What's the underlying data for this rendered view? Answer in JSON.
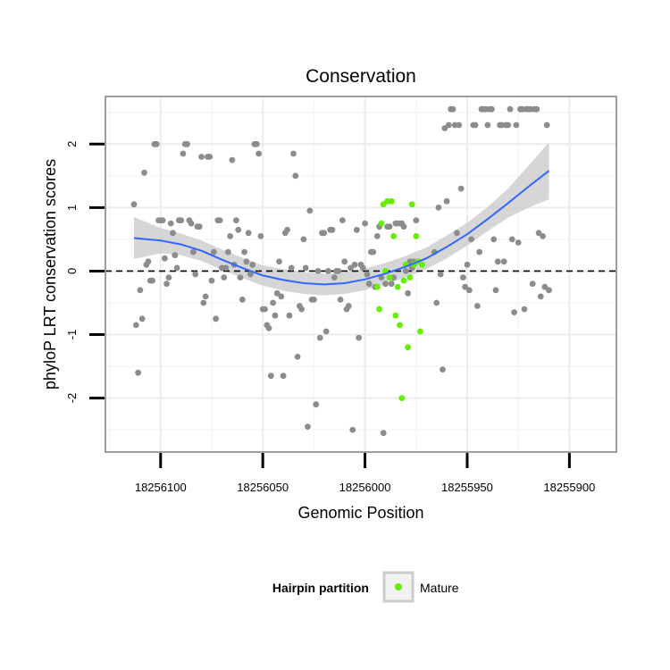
{
  "chart_data": {
    "type": "scatter",
    "title": "Conservation",
    "xlabel": "Genomic Position",
    "ylabel": "phyloP LRT conservation scores",
    "x_reversed": true,
    "xlim": [
      18256127,
      18255877
    ],
    "ylim": [
      -2.85,
      2.75
    ],
    "x_ticks": [
      18256100,
      18256050,
      18256000,
      18255950,
      18255900
    ],
    "y_ticks": [
      2,
      1,
      0,
      -1,
      -2
    ],
    "grid": true,
    "reference_line": {
      "y": 0,
      "style": "dashed",
      "color": "#000000"
    },
    "legend": {
      "title": "Hairpin partition",
      "position": "bottom",
      "entries": [
        "Mature"
      ]
    },
    "colors": {
      "other": "#8c8c8c",
      "mature": "#66ee00",
      "smooth": "#3366ff",
      "ribbon": "#cccccc"
    },
    "series": [
      {
        "name": "",
        "color": "#8c8c8c",
        "points": [
          [
            18256113,
            1.05
          ],
          [
            18256112,
            -0.85
          ],
          [
            18256111,
            -1.6
          ],
          [
            18256110,
            -0.3
          ],
          [
            18256109,
            -0.75
          ],
          [
            18256108,
            1.55
          ],
          [
            18256107,
            0.1
          ],
          [
            18256106,
            0.15
          ],
          [
            18256105,
            -0.15
          ],
          [
            18256104,
            -0.15
          ],
          [
            18256103,
            2.0
          ],
          [
            18256102,
            2.0
          ],
          [
            18256101,
            0.8
          ],
          [
            18256100,
            0.8
          ],
          [
            18256099,
            0.8
          ],
          [
            18256098,
            0.2
          ],
          [
            18256097,
            -0.2
          ],
          [
            18256096,
            -0.1
          ],
          [
            18256095,
            0.75
          ],
          [
            18256094,
            0.6
          ],
          [
            18256093,
            0.25
          ],
          [
            18256092,
            0.05
          ],
          [
            18256091,
            0.8
          ],
          [
            18256090,
            0.8
          ],
          [
            18256089,
            1.85
          ],
          [
            18256088,
            2.0
          ],
          [
            18256087,
            2.0
          ],
          [
            18256086,
            0.8
          ],
          [
            18256085,
            0.75
          ],
          [
            18256084,
            0.3
          ],
          [
            18256083,
            -0.05
          ],
          [
            18256082,
            0.7
          ],
          [
            18256081,
            0.7
          ],
          [
            18256080,
            1.8
          ],
          [
            18256079,
            -0.5
          ],
          [
            18256078,
            -0.4
          ],
          [
            18256077,
            1.8
          ],
          [
            18256076,
            1.8
          ],
          [
            18256075,
            -0.15
          ],
          [
            18256074,
            0.3
          ],
          [
            18256073,
            -0.75
          ],
          [
            18256072,
            0.8
          ],
          [
            18256071,
            0.8
          ],
          [
            18256070,
            0.05
          ],
          [
            18256069,
            -0.1
          ],
          [
            18256068,
            0.05
          ],
          [
            18256067,
            0.3
          ],
          [
            18256066,
            0.55
          ],
          [
            18256065,
            1.75
          ],
          [
            18256064,
            0.1
          ],
          [
            18256063,
            0.8
          ],
          [
            18256062,
            0.65
          ],
          [
            18256061,
            -0.1
          ],
          [
            18256060,
            -0.45
          ],
          [
            18256059,
            0.3
          ],
          [
            18256058,
            0.15
          ],
          [
            18256057,
            0.6
          ],
          [
            18256056,
            -0.05
          ],
          [
            18256055,
            0.1
          ],
          [
            18256054,
            2.0
          ],
          [
            18256053,
            2.0
          ],
          [
            18256052,
            1.85
          ],
          [
            18256051,
            0.55
          ],
          [
            18256050,
            -0.6
          ],
          [
            18256049,
            -0.6
          ],
          [
            18256048,
            -0.85
          ],
          [
            18256047,
            -0.9
          ],
          [
            18256046,
            -1.65
          ],
          [
            18256045,
            -0.5
          ],
          [
            18256044,
            -0.7
          ],
          [
            18256043,
            -0.35
          ],
          [
            18256042,
            0.15
          ],
          [
            18256041,
            -0.4
          ],
          [
            18256040,
            -1.65
          ],
          [
            18256039,
            0.6
          ],
          [
            18256038,
            0.65
          ],
          [
            18256037,
            -0.7
          ],
          [
            18256036,
            0.05
          ],
          [
            18256035,
            1.85
          ],
          [
            18256034,
            1.5
          ],
          [
            18256033,
            -1.35
          ],
          [
            18256032,
            -0.55
          ],
          [
            18256031,
            -0.6
          ],
          [
            18256030,
            0.5
          ],
          [
            18256029,
            0.05
          ],
          [
            18256028,
            -2.45
          ],
          [
            18256027,
            0.95
          ],
          [
            18256026,
            -0.45
          ],
          [
            18256025,
            -0.45
          ],
          [
            18256024,
            -2.1
          ],
          [
            18256023,
            0.0
          ],
          [
            18256022,
            -1.05
          ],
          [
            18256021,
            0.6
          ],
          [
            18256020,
            0.6
          ],
          [
            18256019,
            -0.95
          ],
          [
            18256018,
            0.0
          ],
          [
            18256017,
            0.65
          ],
          [
            18256016,
            0.65
          ],
          [
            18256015,
            -0.1
          ],
          [
            18256014,
            0.0
          ],
          [
            18256013,
            0.0
          ],
          [
            18256012,
            -0.45
          ],
          [
            18256011,
            0.8
          ],
          [
            18256010,
            0.15
          ],
          [
            18256009,
            -0.6
          ],
          [
            18256008,
            -0.55
          ],
          [
            18256007,
            0.05
          ],
          [
            18256006,
            -2.5
          ],
          [
            18256005,
            0.1
          ],
          [
            18256004,
            0.65
          ],
          [
            18256003,
            -1.05
          ],
          [
            18256002,
            0.1
          ],
          [
            18256001,
            0.05
          ],
          [
            18256000,
            0.75
          ],
          [
            18255999,
            -0.05
          ],
          [
            18255998,
            -0.2
          ],
          [
            18255997,
            0.3
          ],
          [
            18255996,
            0.3
          ],
          [
            18255995,
            -0.25
          ],
          [
            18255994,
            0.55
          ],
          [
            18255993,
            0.7
          ],
          [
            18255992,
            -0.1
          ],
          [
            18255991,
            -2.55
          ],
          [
            18255990,
            -0.2
          ],
          [
            18255989,
            0.7
          ],
          [
            18255988,
            0.7
          ],
          [
            18255987,
            -0.2
          ],
          [
            18255986,
            -0.1
          ],
          [
            18255985,
            0.75
          ],
          [
            18255984,
            0.75
          ],
          [
            18255983,
            0.75
          ],
          [
            18255982,
            0.75
          ],
          [
            18255981,
            0.7
          ],
          [
            18255980,
            0.0
          ],
          [
            18255979,
            -0.35
          ],
          [
            18255978,
            0.15
          ],
          [
            18255977,
            0.05
          ],
          [
            18255976,
            0.15
          ],
          [
            18255975,
            0.8
          ],
          [
            18255966,
            0.3
          ],
          [
            18255965,
            -0.5
          ],
          [
            18255964,
            1.0
          ],
          [
            18255963,
            -0.05
          ],
          [
            18255962,
            -1.55
          ],
          [
            18255961,
            2.25
          ],
          [
            18255960,
            1.1
          ],
          [
            18255959,
            2.3
          ],
          [
            18255958,
            2.55
          ],
          [
            18255957,
            2.55
          ],
          [
            18255956,
            2.3
          ],
          [
            18255955,
            0.6
          ],
          [
            18255954,
            2.3
          ],
          [
            18255953,
            1.3
          ],
          [
            18255952,
            -0.1
          ],
          [
            18255951,
            -0.25
          ],
          [
            18255950,
            0.1
          ],
          [
            18255949,
            -0.3
          ],
          [
            18255948,
            0.5
          ],
          [
            18255947,
            2.3
          ],
          [
            18255946,
            2.3
          ],
          [
            18255945,
            -0.55
          ],
          [
            18255944,
            0.3
          ],
          [
            18255943,
            2.55
          ],
          [
            18255942,
            2.55
          ],
          [
            18255941,
            2.55
          ],
          [
            18255940,
            2.3
          ],
          [
            18255939,
            2.55
          ],
          [
            18255938,
            2.55
          ],
          [
            18255937,
            0.5
          ],
          [
            18255936,
            -0.3
          ],
          [
            18255935,
            0.15
          ],
          [
            18255934,
            2.3
          ],
          [
            18255933,
            2.3
          ],
          [
            18255932,
            0.15
          ],
          [
            18255931,
            2.3
          ],
          [
            18255930,
            2.3
          ],
          [
            18255929,
            2.55
          ],
          [
            18255928,
            0.5
          ],
          [
            18255927,
            -0.65
          ],
          [
            18255926,
            2.3
          ],
          [
            18255925,
            0.45
          ],
          [
            18255924,
            2.55
          ],
          [
            18255923,
            2.55
          ],
          [
            18255922,
            -0.6
          ],
          [
            18255921,
            2.55
          ],
          [
            18255920,
            2.55
          ],
          [
            18255919,
            2.55
          ],
          [
            18255918,
            -0.2
          ],
          [
            18255917,
            2.55
          ],
          [
            18255916,
            2.55
          ],
          [
            18255915,
            0.6
          ],
          [
            18255914,
            -0.4
          ],
          [
            18255913,
            0.55
          ],
          [
            18255912,
            -0.25
          ],
          [
            18255911,
            2.3
          ],
          [
            18255910,
            -0.3
          ]
        ]
      },
      {
        "name": "Mature",
        "color": "#66ee00",
        "points": [
          [
            18255994,
            -0.25
          ],
          [
            18255993,
            -0.6
          ],
          [
            18255992,
            0.75
          ],
          [
            18255991,
            1.05
          ],
          [
            18255990,
            0.0
          ],
          [
            18255989,
            1.1
          ],
          [
            18255988,
            -0.1
          ],
          [
            18255987,
            1.1
          ],
          [
            18255986,
            0.55
          ],
          [
            18255985,
            -0.7
          ],
          [
            18255984,
            -0.25
          ],
          [
            18255983,
            -0.85
          ],
          [
            18255982,
            -2.0
          ],
          [
            18255981,
            -0.15
          ],
          [
            18255980,
            0.1
          ],
          [
            18255979,
            -1.2
          ],
          [
            18255978,
            -0.1
          ],
          [
            18255977,
            1.05
          ],
          [
            18255976,
            0.1
          ],
          [
            18255975,
            0.55
          ],
          [
            18255974,
            0.15
          ],
          [
            18255973,
            -0.95
          ],
          [
            18255972,
            0.1
          ]
        ]
      }
    ],
    "smooth": [
      [
        18256113,
        0.52
      ],
      [
        18256100,
        0.48
      ],
      [
        18256090,
        0.42
      ],
      [
        18256080,
        0.32
      ],
      [
        18256070,
        0.18
      ],
      [
        18256060,
        0.05
      ],
      [
        18256050,
        -0.07
      ],
      [
        18256040,
        -0.14
      ],
      [
        18256030,
        -0.19
      ],
      [
        18256020,
        -0.21
      ],
      [
        18256010,
        -0.19
      ],
      [
        18256000,
        -0.13
      ],
      [
        18255990,
        -0.04
      ],
      [
        18255980,
        0.07
      ],
      [
        18255970,
        0.2
      ],
      [
        18255960,
        0.38
      ],
      [
        18255950,
        0.58
      ],
      [
        18255940,
        0.82
      ],
      [
        18255930,
        1.07
      ],
      [
        18255920,
        1.33
      ],
      [
        18255910,
        1.58
      ]
    ],
    "ribbon_halfwidth": [
      0.33,
      0.2,
      0.17,
      0.16,
      0.16,
      0.16,
      0.16,
      0.17,
      0.17,
      0.17,
      0.17,
      0.17,
      0.17,
      0.17,
      0.17,
      0.18,
      0.18,
      0.19,
      0.23,
      0.33,
      0.45
    ]
  }
}
